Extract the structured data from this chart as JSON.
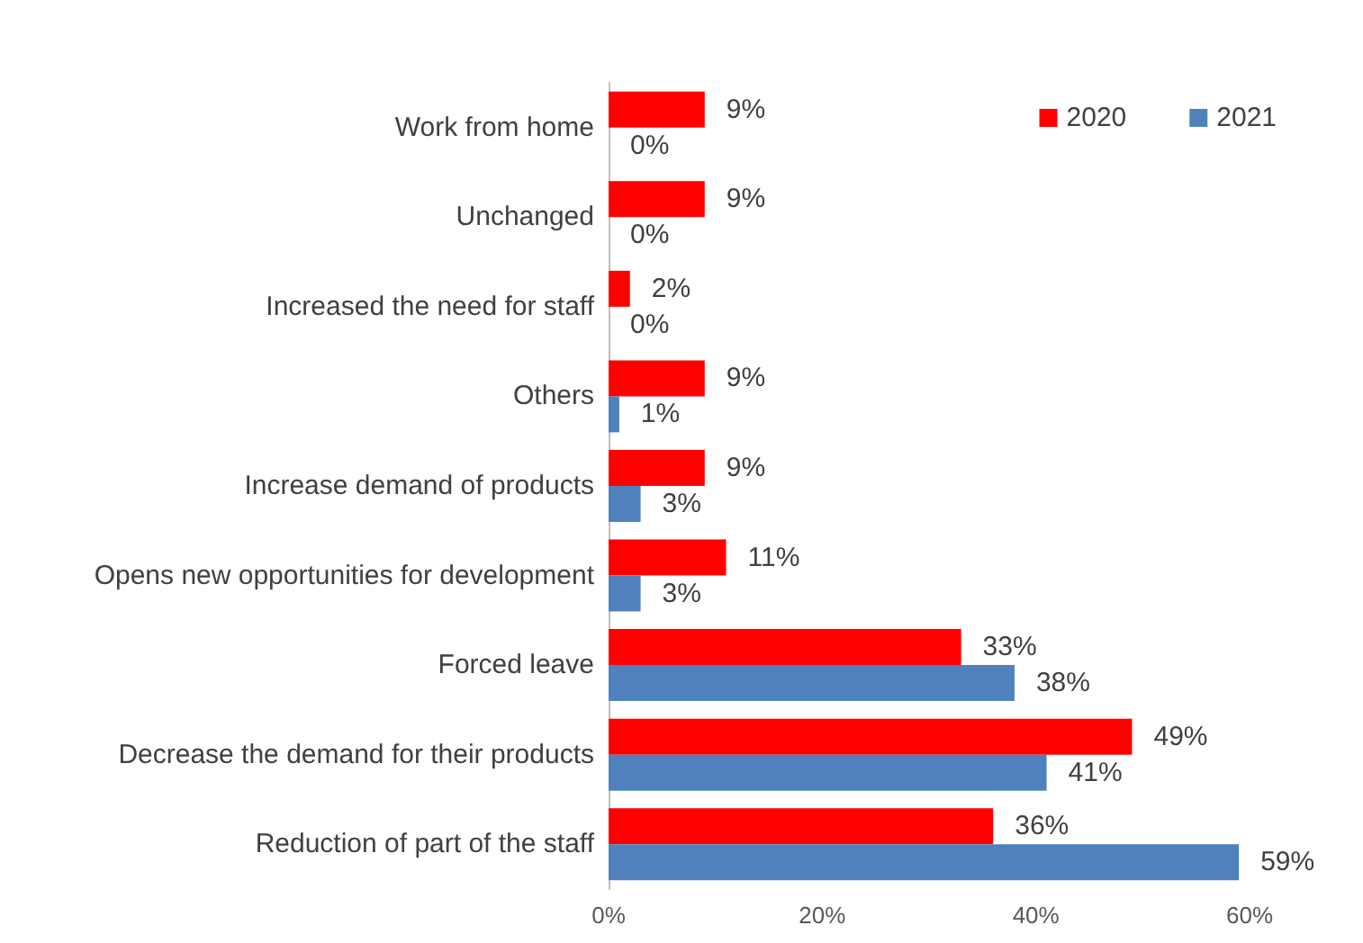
{
  "chart_data": {
    "type": "bar",
    "orientation": "horizontal",
    "categories": [
      "Work from home",
      "Unchanged",
      "Increased the need for staff",
      "Others",
      "Increase demand of products",
      "Opens new opportunities for development",
      "Forced leave",
      "Decrease the demand for their products",
      "Reduction of part of the staff"
    ],
    "series": [
      {
        "name": "2020",
        "color": "#ff0000",
        "values": [
          9,
          9,
          2,
          9,
          9,
          11,
          33,
          49,
          36
        ],
        "value_labels": [
          "9%",
          "9%",
          "2%",
          "9%",
          "9%",
          "11%",
          "33%",
          "49%",
          "36%"
        ]
      },
      {
        "name": "2021",
        "color": "#4f81bd",
        "values": [
          0,
          0,
          0,
          1,
          3,
          3,
          38,
          41,
          59
        ],
        "value_labels": [
          "0%",
          "0%",
          "0%",
          "1%",
          "3%",
          "3%",
          "38%",
          "41%",
          "59%"
        ]
      }
    ],
    "xlim": [
      0,
      60
    ],
    "xticks": [
      {
        "value": 0,
        "label": "0%"
      },
      {
        "value": 20,
        "label": "20%"
      },
      {
        "value": 40,
        "label": "40%"
      },
      {
        "value": 60,
        "label": "60%"
      }
    ],
    "grid": false,
    "legend": "top right"
  }
}
